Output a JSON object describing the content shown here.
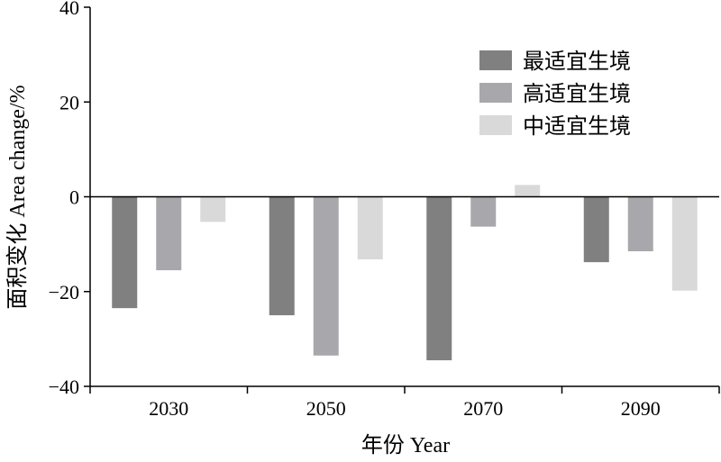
{
  "chart_data": {
    "type": "bar",
    "xlabel": "年份 Year",
    "ylabel": "面积变化 Area change/%",
    "categories": [
      "2030",
      "2050",
      "2070",
      "2090"
    ],
    "ylim": [
      -40,
      40
    ],
    "yticks": [
      40,
      20,
      0,
      -20,
      -40
    ],
    "grid": false,
    "legend_position": "top-right",
    "series": [
      {
        "name": "最适宜生境",
        "color": "#808080",
        "values": [
          -23.5,
          -25.0,
          -34.5,
          -13.8
        ]
      },
      {
        "name": "高适宜生境",
        "color": "#a8a8ac",
        "values": [
          -15.5,
          -33.5,
          -6.3,
          -11.5
        ]
      },
      {
        "name": "中适宜生境",
        "color": "#d9d9d9",
        "values": [
          -5.3,
          -13.2,
          2.5,
          -19.8
        ]
      }
    ]
  }
}
